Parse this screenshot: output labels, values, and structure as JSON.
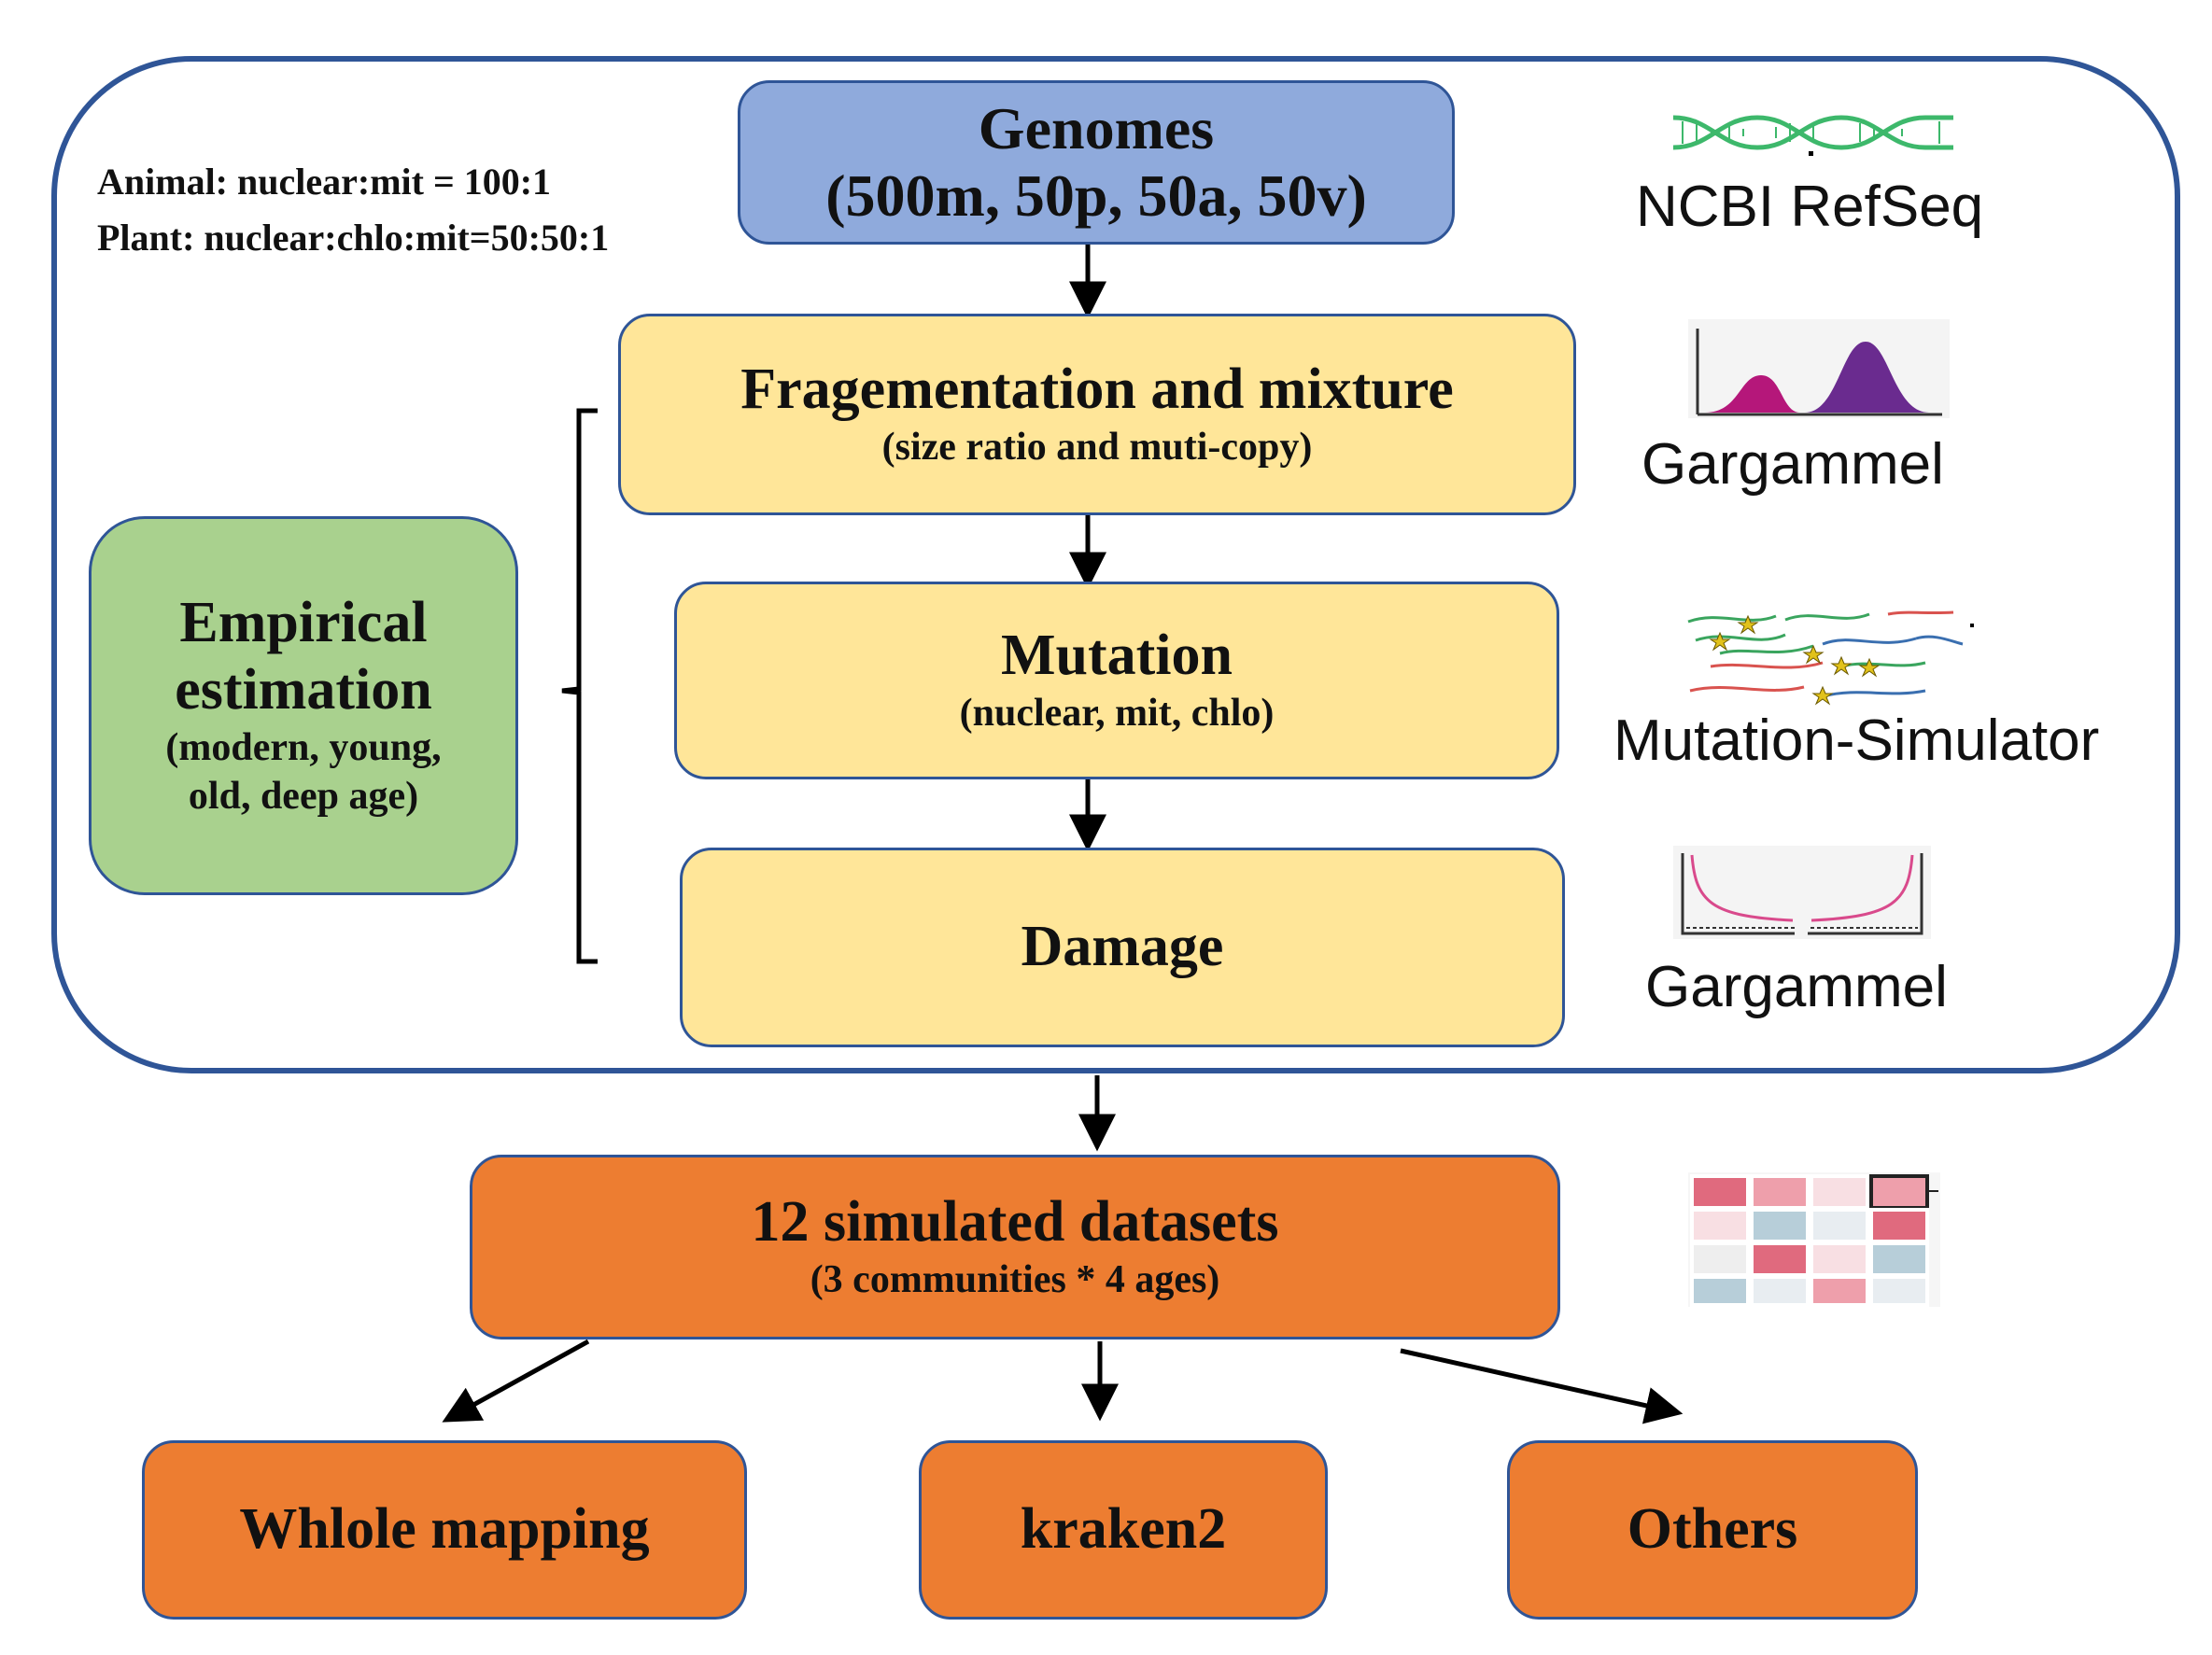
{
  "pipeline": {
    "ratios": {
      "animal": "Animal: nuclear:mit = 100:1",
      "plant": "Plant: nuclear:chlo:mit=50:50:1"
    },
    "genomes": {
      "title": "Genomes",
      "subtitle": "(500m, 50p, 50a, 50v)"
    },
    "fragmentation": {
      "title": "Fragementation and mixture",
      "subtitle": "(size ratio and muti-copy)"
    },
    "mutation": {
      "title": "Mutation",
      "subtitle": "(nuclear, mit, chlo)"
    },
    "damage": {
      "title": "Damage"
    },
    "empirical": {
      "line1": "Empirical",
      "line2": "estimation",
      "sub1": "(modern, young,",
      "sub2": "old, deep age)"
    },
    "datasets": {
      "title": "12 simulated datasets",
      "subtitle": "(3 communities * 4 ages)"
    },
    "outputs": [
      "Whlole mapping",
      "kraken2",
      "Others"
    ]
  },
  "tools": {
    "genomes": {
      "label": "NCBI RefSeq",
      "icon": "dna-helix-icon"
    },
    "fragmentation": {
      "label": "Gargammel",
      "icon": "distribution-peaks-icon"
    },
    "mutation": {
      "label": "Mutation-Simulator",
      "icon": "mutated-reads-icon"
    },
    "damage": {
      "label": "Gargammel",
      "icon": "damage-curve-icon"
    },
    "datasets": {
      "icon": "heatmap-icon"
    }
  },
  "colors": {
    "frame": "#2f5597",
    "genomes_box": "#8faadc",
    "step_box": "#ffe699",
    "empirical_box": "#a9d18e",
    "output_box": "#ed7d31",
    "arrow": "#000000"
  }
}
